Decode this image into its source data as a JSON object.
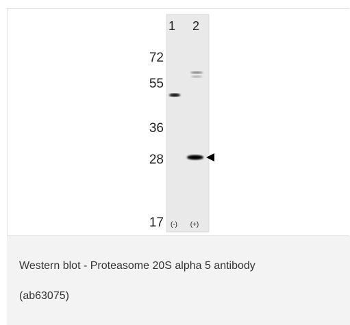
{
  "blot": {
    "lane_labels": [
      "1",
      "2"
    ],
    "markers": [
      "72",
      "55",
      "36",
      "28",
      "17"
    ],
    "lane_conditions": [
      "(-)",
      "(+)"
    ]
  },
  "caption": {
    "lines": [
      "Western blot - Proteasome 20S alpha 5 antibody",
      "(ab63075)"
    ]
  }
}
